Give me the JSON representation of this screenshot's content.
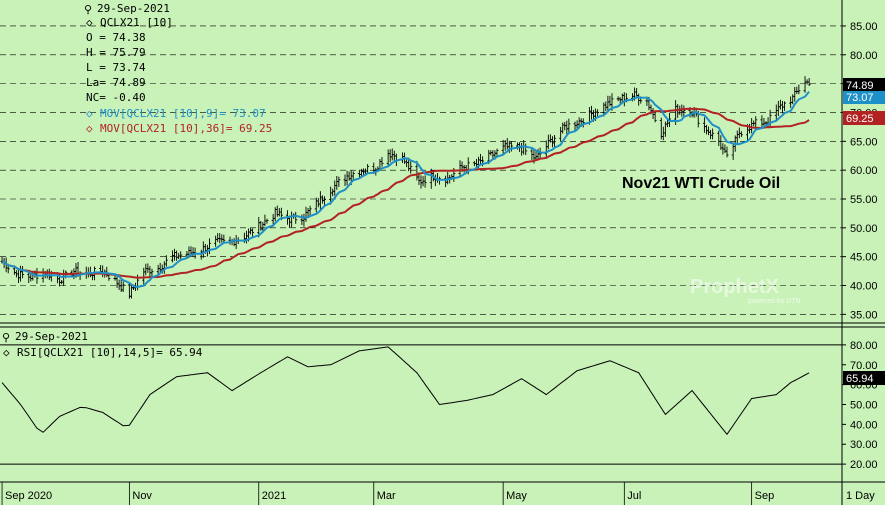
{
  "chart_data": [
    {
      "type": "ohlc",
      "title": "Nov21 WTI Crude Oil",
      "legend": {
        "date": "29-Sep-2021",
        "symbol": "QCLX21 [10]",
        "open": "O = 74.38",
        "high": "H = 75.79",
        "low": "L = 73.74",
        "last": "La= 74.89",
        "net_change": "NC= -0.40",
        "ma_fast": "MOV[QCLX21 [10],9]= 73.07",
        "ma_slow": "MOV[QCLX21 [10],36]= 69.25"
      },
      "ylim": [
        33.5,
        89.5
      ],
      "y_ticks": [
        35,
        40,
        45,
        50,
        55,
        60,
        65,
        70,
        75,
        80,
        85
      ],
      "y_tick_labels": [
        "35.00",
        "40.00",
        "45.00",
        "50.00",
        "55.00",
        "60.00",
        "65.00",
        "70.00",
        "75.00",
        "80.00",
        "85.00"
      ],
      "gridlines": "horizontal dashed",
      "price_anchors": [
        [
          "2020-09-01",
          44.2
        ],
        [
          "2020-09-08",
          42.0
        ],
        [
          "2020-09-15",
          41.5
        ],
        [
          "2020-09-22",
          42.3
        ],
        [
          "2020-09-29",
          41.0
        ],
        [
          "2020-10-06",
          42.5
        ],
        [
          "2020-10-13",
          42.0
        ],
        [
          "2020-10-20",
          42.6
        ],
        [
          "2020-10-27",
          40.5
        ],
        [
          "2020-11-02",
          38.5
        ],
        [
          "2020-11-09",
          42.5
        ],
        [
          "2020-11-16",
          43.0
        ],
        [
          "2020-11-23",
          45.0
        ],
        [
          "2020-11-30",
          45.5
        ],
        [
          "2020-12-07",
          46.2
        ],
        [
          "2020-12-14",
          47.5
        ],
        [
          "2020-12-21",
          47.5
        ],
        [
          "2020-12-28",
          48.5
        ],
        [
          "2021-01-05",
          50.5
        ],
        [
          "2021-01-12",
          52.5
        ],
        [
          "2021-01-19",
          51.5
        ],
        [
          "2021-01-26",
          52.0
        ],
        [
          "2021-02-02",
          54.5
        ],
        [
          "2021-02-09",
          57.0
        ],
        [
          "2021-02-16",
          59.0
        ],
        [
          "2021-02-23",
          60.0
        ],
        [
          "2021-03-02",
          60.5
        ],
        [
          "2021-03-08",
          63.0
        ],
        [
          "2021-03-15",
          62.0
        ],
        [
          "2021-03-23",
          58.0
        ],
        [
          "2021-03-30",
          59.0
        ],
        [
          "2021-04-06",
          58.5
        ],
        [
          "2021-04-13",
          60.5
        ],
        [
          "2021-04-20",
          61.0
        ],
        [
          "2021-04-27",
          62.5
        ],
        [
          "2021-05-04",
          64.0
        ],
        [
          "2021-05-11",
          64.0
        ],
        [
          "2021-05-19",
          62.0
        ],
        [
          "2021-05-26",
          65.0
        ],
        [
          "2021-06-02",
          67.5
        ],
        [
          "2021-06-09",
          68.5
        ],
        [
          "2021-06-16",
          70.0
        ],
        [
          "2021-06-23",
          71.5
        ],
        [
          "2021-06-30",
          72.5
        ],
        [
          "2021-07-06",
          73.0
        ],
        [
          "2021-07-12",
          72.0
        ],
        [
          "2021-07-19",
          66.5
        ],
        [
          "2021-07-26",
          70.5
        ],
        [
          "2021-08-02",
          70.5
        ],
        [
          "2021-08-09",
          67.5
        ],
        [
          "2021-08-16",
          65.0
        ],
        [
          "2021-08-20",
          62.0
        ],
        [
          "2021-08-26",
          66.5
        ],
        [
          "2021-09-02",
          68.0
        ],
        [
          "2021-09-09",
          68.5
        ],
        [
          "2021-09-15",
          71.0
        ],
        [
          "2021-09-21",
          72.5
        ],
        [
          "2021-09-27",
          75.5
        ],
        [
          "2021-09-29",
          74.89
        ]
      ],
      "series": [
        {
          "name": "MOV[QCLX21 [10],9]",
          "last_value": "73.07",
          "color": "#1e90c8"
        },
        {
          "name": "MOV[QCLX21 [10],36]",
          "last_value": "69.25",
          "color": "#b22222"
        }
      ],
      "last_price_tag": "74.89"
    },
    {
      "type": "line",
      "legend": {
        "date": "29-Sep-2021",
        "label": "RSI[QCLX21 [10],14,5]= 65.94"
      },
      "ylim": [
        11,
        89
      ],
      "y_ticks": [
        20,
        30,
        40,
        50,
        60,
        70,
        80
      ],
      "y_tick_labels": [
        "20.00",
        "30.00",
        "40.00",
        "50.00",
        "60.00",
        "70.00",
        "80.00"
      ],
      "reference_lines": [
        80,
        20
      ],
      "anchors": [
        [
          "2020-09-01",
          61
        ],
        [
          "2020-09-10",
          50
        ],
        [
          "2020-09-20",
          35
        ],
        [
          "2020-09-29",
          44
        ],
        [
          "2020-10-10",
          49
        ],
        [
          "2020-10-20",
          46
        ],
        [
          "2020-11-01",
          38
        ],
        [
          "2020-11-12",
          55
        ],
        [
          "2020-11-25",
          64
        ],
        [
          "2020-12-10",
          66
        ],
        [
          "2020-12-22",
          57
        ],
        [
          "2021-01-05",
          66
        ],
        [
          "2021-01-18",
          74
        ],
        [
          "2021-01-28",
          69
        ],
        [
          "2021-02-08",
          70
        ],
        [
          "2021-02-22",
          77
        ],
        [
          "2021-03-08",
          79
        ],
        [
          "2021-03-22",
          66
        ],
        [
          "2021-04-02",
          50
        ],
        [
          "2021-04-15",
          52
        ],
        [
          "2021-04-28",
          55
        ],
        [
          "2021-05-12",
          63
        ],
        [
          "2021-05-24",
          55
        ],
        [
          "2021-06-08",
          67
        ],
        [
          "2021-06-24",
          72
        ],
        [
          "2021-07-08",
          66
        ],
        [
          "2021-07-21",
          45
        ],
        [
          "2021-08-03",
          57
        ],
        [
          "2021-08-20",
          35
        ],
        [
          "2021-09-01",
          53
        ],
        [
          "2021-09-13",
          55
        ],
        [
          "2021-09-20",
          61
        ],
        [
          "2021-09-29",
          65.94
        ]
      ],
      "series": [
        {
          "name": "RSI[QCLX21 [10],14,5]",
          "last_value": "65.94",
          "color": "#000000"
        }
      ],
      "last_value_tag": "65.94"
    }
  ],
  "x_axis": {
    "labels": [
      "Sep 2020",
      "Nov",
      "2021",
      "Mar",
      "May",
      "Jul",
      "Sep"
    ],
    "label_dates": [
      "2020-09-01",
      "2020-11-02",
      "2021-01-04",
      "2021-03-01",
      "2021-05-03",
      "2021-07-01",
      "2021-09-01"
    ],
    "range": [
      "2020-08-31",
      "2021-10-15"
    ],
    "interval": "1 Day"
  },
  "watermark": {
    "text": "ProphetX",
    "sub": "powered by DTN"
  },
  "colors": {
    "background": "#c9f2b8",
    "bars": "#000000",
    "ma_fast": "#1e90c8",
    "ma_slow": "#b22222"
  }
}
